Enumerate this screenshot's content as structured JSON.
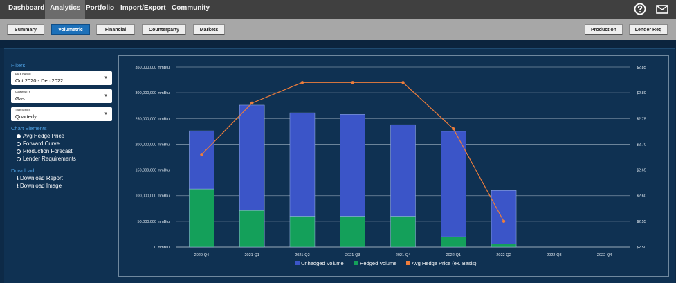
{
  "topnav": {
    "items": [
      "Dashboard",
      "Analytics",
      "Portfolio",
      "Import/Export",
      "Community"
    ],
    "active": "Analytics",
    "icons": [
      "help-circle-icon",
      "mail-icon"
    ]
  },
  "subnav": {
    "tabs": [
      "Summary",
      "Volumetric",
      "Financial",
      "Counterparty",
      "Markets"
    ],
    "active": "Volumetric",
    "right_buttons": [
      "Production",
      "Lender Req"
    ]
  },
  "sidebar": {
    "filters_title": "Filters",
    "date_range": {
      "label": "DATE RANGE",
      "value": "Oct 2020 - Dec 2022"
    },
    "commodity": {
      "label": "COMMODITY",
      "value": "Gas"
    },
    "time_series": {
      "label": "TIME SERIES",
      "value": "Quarterly"
    },
    "chart_elements_title": "Chart Elements",
    "chart_elements": [
      {
        "label": "Avg Hedge Price",
        "checked": true
      },
      {
        "label": "Forward Curve",
        "checked": false
      },
      {
        "label": "Production Forecast",
        "checked": false
      },
      {
        "label": "Lender Requirements",
        "checked": false
      }
    ],
    "download_title": "Download",
    "downloads": [
      "Download Report",
      "Download Image"
    ]
  },
  "colors": {
    "unhedged": "#3b55c8",
    "hedged": "#14a05a",
    "price_line": "#ee7d3b"
  },
  "chart_data": {
    "type": "bar",
    "categories": [
      "2020-Q4",
      "2021-Q1",
      "2021-Q2",
      "2021-Q3",
      "2021-Q4",
      "2022-Q1",
      "2022-Q2",
      "2022-Q3",
      "2022-Q4"
    ],
    "series": [
      {
        "name": "Unhedged Volume",
        "values": [
          113000000,
          205000000,
          201000000,
          198000000,
          178000000,
          205000000,
          104000000,
          null,
          null
        ]
      },
      {
        "name": "Hedged Volume",
        "values": [
          113000000,
          71000000,
          60000000,
          60000000,
          60000000,
          20000000,
          6000000,
          null,
          null
        ]
      },
      {
        "name": "Avg Hedge Price (ex. Basis)",
        "axis": "right",
        "values": [
          2.68,
          2.78,
          2.82,
          2.82,
          2.82,
          2.73,
          2.55,
          null,
          null
        ]
      }
    ],
    "ylim": [
      0,
      350000000
    ],
    "y_ticks": [
      "0 mmBtu",
      "50,000,000 mmBtu",
      "100,000,000 mmBtu",
      "150,000,000 mmBtu",
      "200,000,000 mmBtu",
      "250,000,000 mmBtu",
      "300,000,000 mmBtu",
      "350,000,000 mmBtu"
    ],
    "y2lim": [
      2.5,
      2.85
    ],
    "y2_ticks": [
      "$2.50",
      "$2.55",
      "$2.60",
      "$2.65",
      "$2.70",
      "$2.75",
      "$2.80",
      "$2.85"
    ],
    "legend": [
      "Unhedged Volume",
      "Hedged Volume",
      "Avg Hedge Price (ex. Basis)"
    ],
    "stacked": true,
    "grid": true,
    "legend_position": "bottom"
  }
}
